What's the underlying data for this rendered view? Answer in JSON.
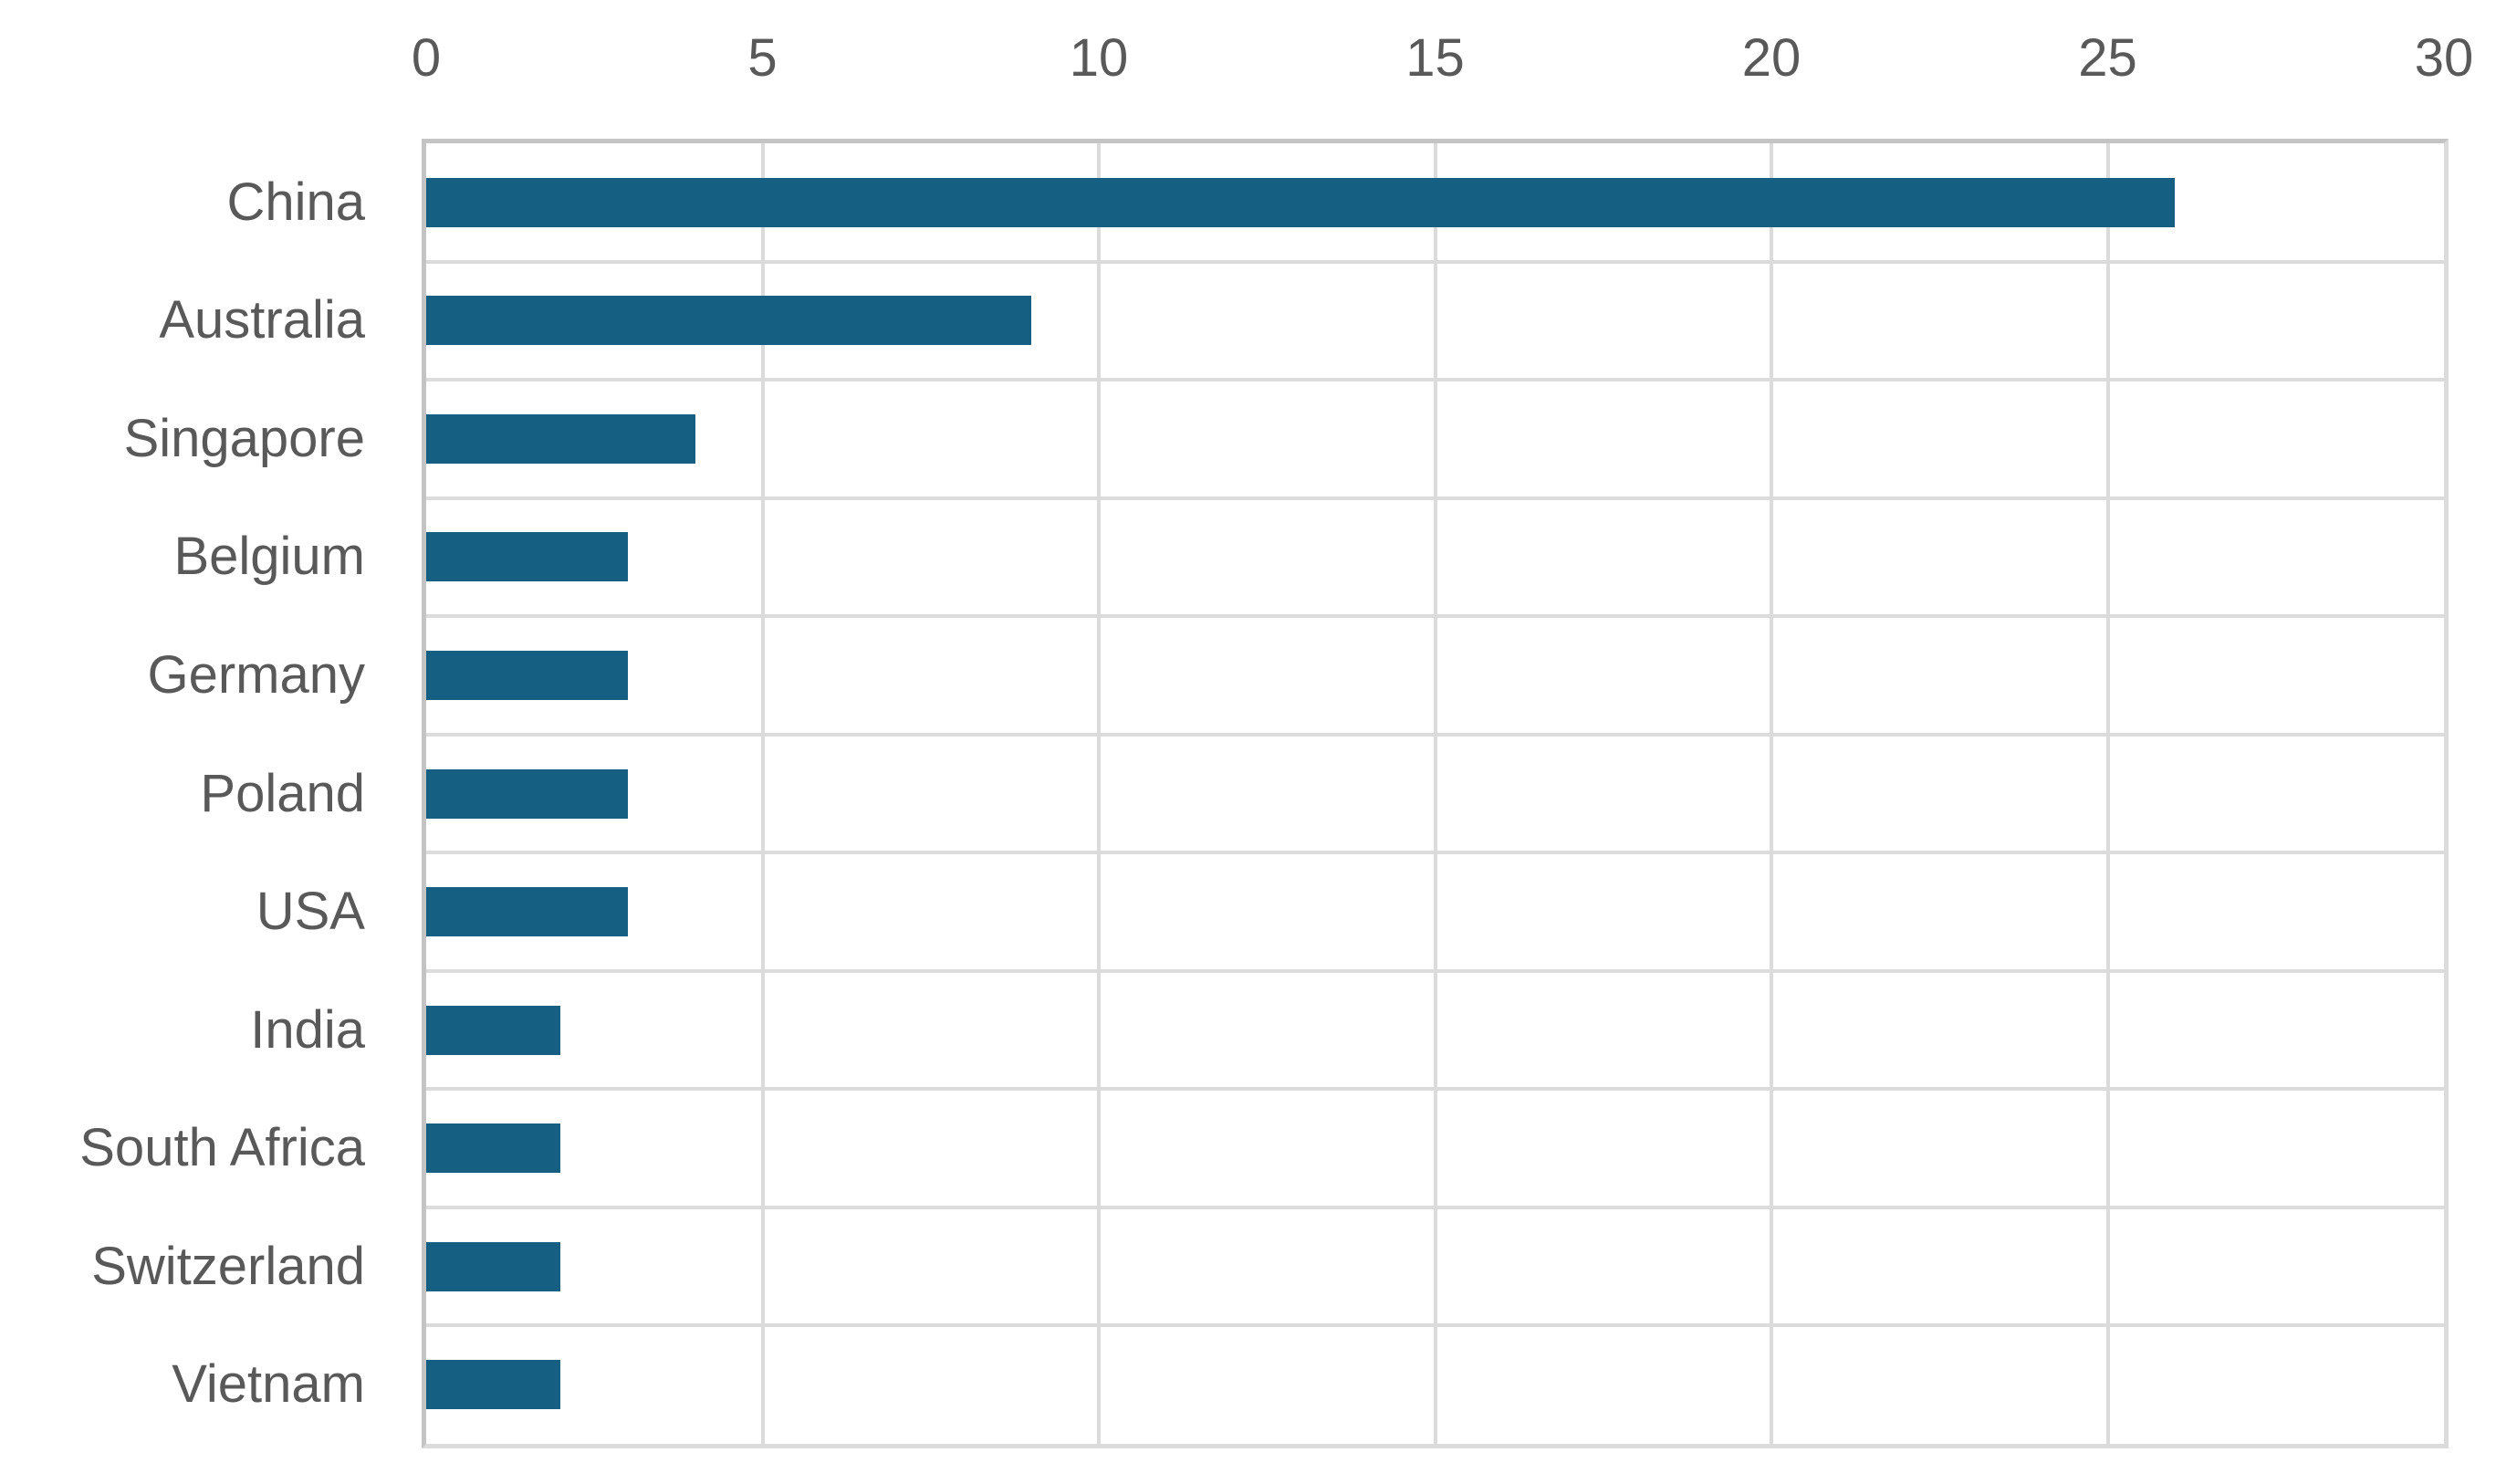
{
  "chart_data": {
    "type": "bar",
    "orientation": "horizontal",
    "title": "",
    "xlabel": "",
    "ylabel": "",
    "categories": [
      "China",
      "Australia",
      "Singapore",
      "Belgium",
      "Germany",
      "Poland",
      "USA",
      "India",
      "South Africa",
      "Switzerland",
      "Vietnam"
    ],
    "values": [
      26,
      9,
      4,
      3,
      3,
      3,
      3,
      2,
      2,
      2,
      2
    ],
    "xlim": [
      0,
      30
    ],
    "xticks": [
      0,
      5,
      10,
      15,
      20,
      25,
      30
    ],
    "xtick_labels": [
      "0",
      "5",
      "10",
      "15",
      "20",
      "25",
      "30"
    ],
    "tick_position": "top",
    "grid": true,
    "legend": false,
    "colors": {
      "bar": "#156082",
      "gridline": "#DBDBDB",
      "plot_border": "#C4C4C4",
      "text": "#595959",
      "background": "#FFFFFF"
    }
  }
}
